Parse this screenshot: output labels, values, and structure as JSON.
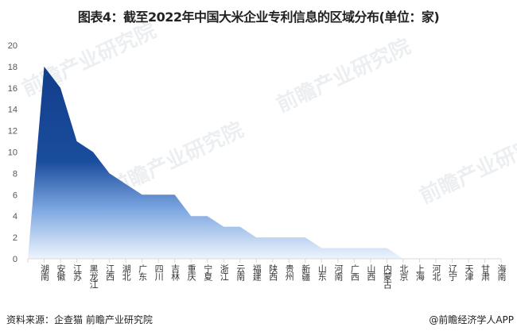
{
  "title": "图表4：截至2022年中国大米企业专利信息的区域分布(单位：家)",
  "source": "资料来源：企查猫 前瞻产业研究院",
  "credit": "@前瞻经济学人APP",
  "watermark": "前瞻产业研究院",
  "colors": {
    "area_dark": "#0f3f8e",
    "area_light": "#eef4fd",
    "axis": "#d9d9d9"
  },
  "chart_data": {
    "type": "area",
    "title": "图表4：截至2022年中国大米企业专利信息的区域分布(单位：家)",
    "xlabel": "",
    "ylabel": "",
    "ylim": [
      0,
      20
    ],
    "yticks": [
      0,
      2,
      4,
      6,
      8,
      10,
      12,
      14,
      16,
      18,
      20
    ],
    "grid": false,
    "legend": "none",
    "categories": [
      "湖南",
      "安徽",
      "江苏",
      "黑龙江",
      "江西",
      "湖北",
      "广东",
      "四川",
      "吉林",
      "重庆",
      "宁夏",
      "浙江",
      "云南",
      "福建",
      "陕西",
      "贵州",
      "新疆",
      "山东",
      "河南",
      "广西",
      "山西",
      "内蒙古",
      "北京",
      "上海",
      "河北",
      "辽宁",
      "天津",
      "甘肃",
      "海南"
    ],
    "values": [
      18,
      16,
      11,
      10,
      8,
      7,
      6,
      6,
      6,
      4,
      4,
      3,
      3,
      2,
      2,
      2,
      2,
      1,
      1,
      1,
      1,
      1,
      0,
      0,
      0,
      0,
      0,
      0,
      0
    ]
  }
}
